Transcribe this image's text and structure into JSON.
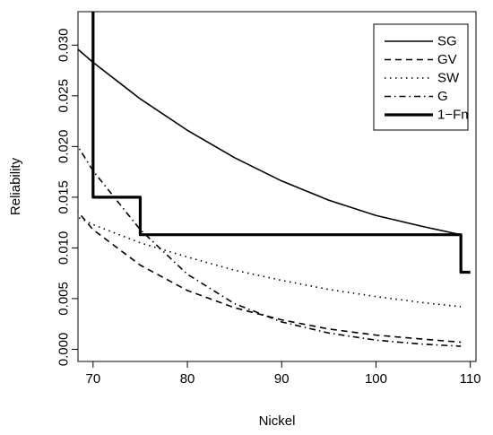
{
  "chart_data": {
    "type": "line",
    "title": "",
    "xlabel": "Nickel",
    "ylabel": "Reliability",
    "xlim": [
      68.4,
      110.6
    ],
    "ylim": [
      -0.0012,
      0.0333
    ],
    "xticks": [
      70,
      80,
      90,
      100,
      110
    ],
    "xtick_labels": [
      "70",
      "80",
      "90",
      "100",
      "110"
    ],
    "yticks": [
      0.0,
      0.005,
      0.01,
      0.015,
      0.02,
      0.025,
      0.03
    ],
    "ytick_labels": [
      "0.000",
      "0.005",
      "0.010",
      "0.015",
      "0.020",
      "0.025",
      "0.030"
    ],
    "grid": false,
    "legend_position": "top-right",
    "series": [
      {
        "name": "SG",
        "line_style": "solid",
        "line_width": "normal",
        "x": [
          68,
          70,
          75,
          80,
          85,
          90,
          95,
          100,
          105,
          109
        ],
        "y": [
          0.0299,
          0.0283,
          0.0247,
          0.0216,
          0.0189,
          0.0166,
          0.0147,
          0.0132,
          0.0121,
          0.0113
        ]
      },
      {
        "name": "GV",
        "line_style": "dashed",
        "line_width": "normal",
        "x": [
          68,
          70,
          75,
          80,
          85,
          90,
          95,
          100,
          105,
          109
        ],
        "y": [
          0.014,
          0.0118,
          0.0083,
          0.0058,
          0.0041,
          0.0029,
          0.002,
          0.0014,
          0.001,
          0.0007
        ]
      },
      {
        "name": "SW",
        "line_style": "dotted",
        "line_width": "normal",
        "x": [
          68,
          70,
          75,
          80,
          85,
          90,
          95,
          100,
          105,
          109
        ],
        "y": [
          0.0132,
          0.0123,
          0.0105,
          0.0091,
          0.0078,
          0.0068,
          0.0059,
          0.0052,
          0.0046,
          0.0042
        ]
      },
      {
        "name": "G",
        "line_style": "dashdot",
        "line_width": "normal",
        "x": [
          68,
          70,
          75,
          80,
          85,
          90,
          95,
          100,
          105,
          109
        ],
        "y": [
          0.0206,
          0.0176,
          0.0118,
          0.0074,
          0.0045,
          0.0027,
          0.0016,
          0.0009,
          0.0005,
          0.0003
        ]
      },
      {
        "name": "1−Fn",
        "line_style": "solid",
        "line_width": "thick",
        "step": true,
        "x": [
          70,
          70,
          75,
          75,
          109,
          109,
          110
        ],
        "y": [
          0.034,
          0.015,
          0.015,
          0.0113,
          0.0113,
          0.0076,
          0.0076
        ]
      }
    ]
  }
}
